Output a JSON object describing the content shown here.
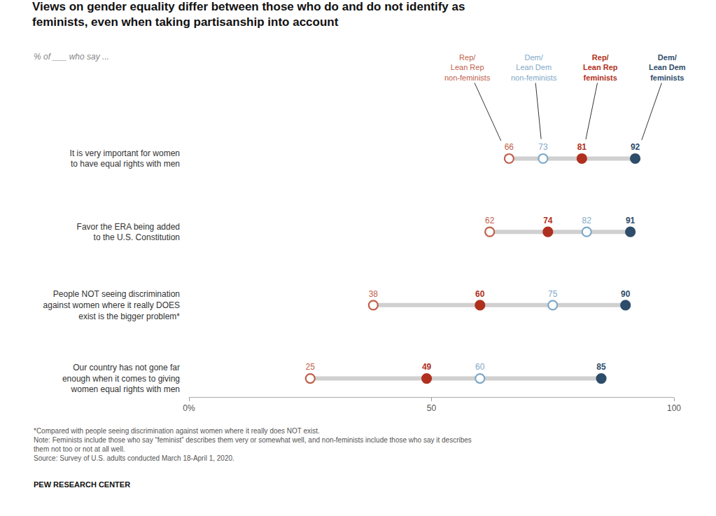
{
  "chart_data": {
    "type": "dot",
    "title": "Views on gender equality differ between those who do and do not identify as\nfeminists, even when taking partisanship into account",
    "subtitle": "% of ___ who say ...",
    "categories": [
      "It is very important for women\nto have equal rights with men",
      "Favor the ERA being added\nto the U.S. Constitution",
      "People NOT seeing discrimination\nagainst women where it really DOES\nexist is the bigger problem*",
      "Our country has not gone far\nenough when it comes to giving\nwomen equal rights with men"
    ],
    "series": [
      {
        "name": "Rep/\nLean Rep\nnon-feminists",
        "color": "#c0604a",
        "marker": "circle-open",
        "values": [
          66,
          62,
          38,
          25
        ]
      },
      {
        "name": "Dem/\nLean Dem\nnon-feminists",
        "color": "#7fa8c8",
        "marker": "circle-open",
        "values": [
          73,
          82,
          75,
          60
        ]
      },
      {
        "name": "Rep/\nLean Rep\nfeminists",
        "color": "#b03020",
        "marker": "circle",
        "values": [
          81,
          74,
          60,
          49
        ]
      },
      {
        "name": "Dem/\nLean Dem\nfeminists",
        "color": "#2e4d6b",
        "marker": "circle",
        "values": [
          92,
          91,
          90,
          85
        ]
      }
    ],
    "xlim": [
      0,
      100
    ],
    "xticks": [
      {
        "value": 0,
        "label": "0%"
      },
      50,
      100
    ],
    "grid": false,
    "data_labels": true,
    "footnotes": [
      "*Compared with people seeing discrimination against women where it really does NOT exist.",
      "Note: Feminists include those who say “feminist” describes them very or somewhat well, and non-feminists include those who say it describes",
      "them not too or not at all well.",
      "Source: Survey of U.S. adults conducted March 18-April 1, 2020."
    ],
    "source": "PEW RESEARCH CENTER"
  }
}
